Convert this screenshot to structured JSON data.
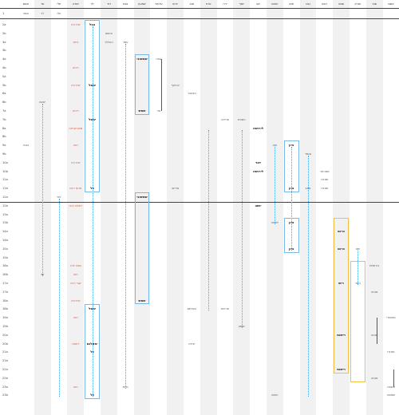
{
  "columns": [
    {
      "id": "c1",
      "title": "אשם",
      "sub": "ממני"
    },
    {
      "id": "c2",
      "title": "סר",
      "sub": "לוי"
    },
    {
      "id": "c3",
      "title": "זולי",
      "sub": "זולו"
    },
    {
      "id": "c4",
      "title": "יהודה",
      "sub": ""
    },
    {
      "id": "c5",
      "title": "לוי",
      "sub": ""
    },
    {
      "id": "c6",
      "title": "דוד",
      "sub": ""
    },
    {
      "id": "c7",
      "title": "נפת",
      "sub": ""
    },
    {
      "id": "c8",
      "title": "שמעון",
      "sub": ""
    },
    {
      "id": "c9",
      "title": "עדעזר",
      "sub": ""
    },
    {
      "id": "c10",
      "title": "יורש",
      "sub": ""
    },
    {
      "id": "c11",
      "title": "זאב",
      "sub": ""
    },
    {
      "id": "c12",
      "title": "ארח",
      "sub": ""
    },
    {
      "id": "c13",
      "title": "ירה",
      "sub": ""
    },
    {
      "id": "c14",
      "title": "יוסף",
      "sub": ""
    },
    {
      "id": "c15",
      "title": "יהב",
      "sub": ""
    },
    {
      "id": "c16",
      "title": "חוטם",
      "sub": ""
    },
    {
      "id": "c17",
      "title": "חנא",
      "sub": ""
    },
    {
      "id": "c18",
      "title": "נבט",
      "sub": ""
    },
    {
      "id": "c19",
      "title": "ראש",
      "sub": ""
    },
    {
      "id": "c20",
      "title": "שפט",
      "sub": ""
    },
    {
      "id": "c21",
      "title": "עזרא",
      "sub": ""
    },
    {
      "id": "c22",
      "title": "שגר",
      "sub": ""
    },
    {
      "id": "c23",
      "title": "אשם",
      "sub": ""
    }
  ],
  "rows": [
    "2a",
    "2b",
    "3a",
    "3b",
    "4a",
    "4b",
    "5a",
    "5b",
    "6a",
    "6b",
    "7a",
    "7b",
    "8a",
    "8b",
    "9a",
    "9b",
    "10a",
    "10b",
    "11a",
    "11b",
    "12a",
    "12b",
    "13a",
    "13b",
    "14a",
    "14b",
    "15a",
    "15b",
    "16a",
    "16b",
    "17a",
    "17b",
    "18a",
    "18b",
    "19a",
    "19b",
    "20a",
    "20b",
    "21a",
    "21b",
    "22a",
    "22b",
    "23a",
    "23b"
  ],
  "row_header_top": "1",
  "cells": [
    {
      "row": "2a",
      "col": "c4",
      "text": "אדרכיה",
      "style": "red"
    },
    {
      "row": "2a",
      "col": "c5",
      "text": "בבל",
      "style": "bold"
    },
    {
      "row": "2b",
      "col": "c6",
      "text": "אחותו",
      "style": "norm"
    },
    {
      "row": "3a",
      "col": "c4",
      "text": "ביתר",
      "style": "red"
    },
    {
      "row": "3a",
      "col": "c6",
      "text": "ההללך",
      "style": "norm"
    },
    {
      "row": "3a",
      "col": "c7",
      "text": "עמד",
      "style": "norm"
    },
    {
      "row": "4a",
      "col": "c8",
      "text": "שמשוני",
      "style": "bold"
    },
    {
      "row": "4a",
      "col": "c9",
      "text": "גבוה",
      "style": "norm"
    },
    {
      "row": "4b",
      "col": "c4",
      "text": "ריחה",
      "style": "red"
    },
    {
      "row": "5b",
      "col": "c4",
      "text": "אדרכיה",
      "style": "red"
    },
    {
      "row": "5b",
      "col": "c5",
      "text": "ימסל",
      "style": "bold"
    },
    {
      "row": "5b",
      "col": "c10",
      "text": "ארטוף",
      "style": "norm"
    },
    {
      "row": "6a",
      "col": "c11",
      "text": "הצטבר",
      "style": "norm"
    },
    {
      "row": "6b",
      "col": "c2",
      "text": "יוגיגם",
      "style": "norm"
    },
    {
      "row": "7a",
      "col": "c4",
      "text": "ריחה",
      "style": "red"
    },
    {
      "row": "7a",
      "col": "c8",
      "text": "שמש",
      "style": "bold"
    },
    {
      "row": "7a",
      "col": "c9",
      "text": "מר",
      "style": "norm"
    },
    {
      "row": "7b",
      "col": "c5",
      "text": "ימסל",
      "style": "bold"
    },
    {
      "row": "7b",
      "col": "c13",
      "text": "פריחה",
      "style": "norm"
    },
    {
      "row": "7b",
      "col": "c14",
      "text": "חשגית",
      "style": "norm"
    },
    {
      "row": "8a",
      "col": "c4",
      "text": "מוארקרחה",
      "style": "red"
    },
    {
      "row": "8a",
      "col": "c15",
      "text": "לירושה",
      "style": "bold"
    },
    {
      "row": "9a",
      "col": "c1",
      "text": "גבנה",
      "style": "norm"
    },
    {
      "row": "9a",
      "col": "c4",
      "text": "חוה",
      "style": "red"
    },
    {
      "row": "9a",
      "col": "c16",
      "text": "חוט",
      "style": "norm"
    },
    {
      "row": "9a",
      "col": "c17",
      "text": "ציון",
      "style": "bold"
    },
    {
      "row": "9b",
      "col": "c18",
      "text": "נסמר",
      "style": "norm"
    },
    {
      "row": "10a",
      "col": "c4",
      "text": "אדרכיה",
      "style": "red"
    },
    {
      "row": "10a",
      "col": "c15",
      "text": "ייטר",
      "style": "bold"
    },
    {
      "row": "10b",
      "col": "c15",
      "text": "לירושה",
      "style": "bold"
    },
    {
      "row": "10b",
      "col": "c19",
      "text": "מסהחר",
      "style": "norm"
    },
    {
      "row": "11a",
      "col": "c19",
      "text": "זמנזרו",
      "style": "norm"
    },
    {
      "row": "11b",
      "col": "c4",
      "text": "מרשי רבה",
      "style": "red"
    },
    {
      "row": "11b",
      "col": "c5",
      "text": "כל",
      "style": "bold"
    },
    {
      "row": "11b",
      "col": "c10",
      "text": "מרתב",
      "style": "norm"
    },
    {
      "row": "11b",
      "col": "c17",
      "text": "ציון",
      "style": "bold"
    },
    {
      "row": "11b",
      "col": "c18",
      "text": "ממב",
      "style": "norm"
    },
    {
      "row": "11b",
      "col": "c19",
      "text": "זמנזרו",
      "style": "norm"
    },
    {
      "row": "12a",
      "col": "c3",
      "text": "לפי",
      "style": "norm"
    },
    {
      "row": "12a",
      "col": "c8",
      "text": "שמשוני",
      "style": "bold"
    },
    {
      "row": "12b",
      "col": "c4",
      "text": "רחמה רבה",
      "style": "red"
    },
    {
      "row": "12b",
      "col": "c15",
      "text": "יושב",
      "style": "bold"
    },
    {
      "row": "13b",
      "col": "c16",
      "text": "לחמה",
      "style": "norm"
    },
    {
      "row": "13b",
      "col": "c17",
      "text": "ציון",
      "style": "bold"
    },
    {
      "row": "14a",
      "col": "c20",
      "text": "כרום",
      "style": "bold"
    },
    {
      "row": "15a",
      "col": "c17",
      "text": "ציון",
      "style": "bold"
    },
    {
      "row": "15a",
      "col": "c20",
      "text": "כרום",
      "style": "bold"
    },
    {
      "row": "15a",
      "col": "c21",
      "text": "ימנו",
      "style": "norm"
    },
    {
      "row": "16a",
      "col": "c4",
      "text": "שבט יורה",
      "style": "red"
    },
    {
      "row": "16a",
      "col": "c22",
      "text": "בירשלם",
      "style": "norm"
    },
    {
      "row": "16b",
      "col": "c2",
      "text": "זמי",
      "style": "norm"
    },
    {
      "row": "16b",
      "col": "c4",
      "text": "חוה",
      "style": "red"
    },
    {
      "row": "17a",
      "col": "c4",
      "text": "שבי רחה",
      "style": "red"
    },
    {
      "row": "17a",
      "col": "c20",
      "text": "ריש",
      "style": "bold"
    },
    {
      "row": "17a",
      "col": "c21",
      "text": "כותר",
      "style": "norm"
    },
    {
      "row": "17b",
      "col": "c22",
      "text": "מנחה",
      "style": "norm"
    },
    {
      "row": "18a",
      "col": "c4",
      "text": "אדרכיה",
      "style": "red"
    },
    {
      "row": "18a",
      "col": "c8",
      "text": "שמש",
      "style": "bold"
    },
    {
      "row": "18b",
      "col": "c5",
      "text": "ימסל",
      "style": "bold"
    },
    {
      "row": "18b",
      "col": "c11",
      "text": "השרתם",
      "style": "norm"
    },
    {
      "row": "18b",
      "col": "c13",
      "text": "פרחים",
      "style": "norm"
    },
    {
      "row": "19a",
      "col": "c4",
      "text": "חוה",
      "style": "red"
    },
    {
      "row": "19a",
      "col": "c23",
      "text": "מחשורי",
      "style": "norm"
    },
    {
      "row": "19b",
      "col": "c14",
      "text": "ישמע",
      "style": "norm"
    },
    {
      "row": "20a",
      "col": "c20",
      "text": "רישות",
      "style": "bold"
    },
    {
      "row": "20a",
      "col": "c22",
      "text": "מנחה",
      "style": "norm"
    },
    {
      "row": "20b",
      "col": "c4",
      "text": "רחמה",
      "style": "red"
    },
    {
      "row": "20b",
      "col": "c5",
      "text": "ימסלגם",
      "style": "bold"
    },
    {
      "row": "20b",
      "col": "c11",
      "text": "יצדינו",
      "style": "norm"
    },
    {
      "row": "21a",
      "col": "c5",
      "text": "כל",
      "style": "bold"
    },
    {
      "row": "21a",
      "col": "c23",
      "text": "זמנזרו",
      "style": "norm"
    },
    {
      "row": "22a",
      "col": "c20",
      "text": "רישות",
      "style": "bold"
    },
    {
      "row": "22b",
      "col": "c22",
      "text": "מנחה",
      "style": "norm"
    },
    {
      "row": "23a",
      "col": "c4",
      "text": "חוה",
      "style": "red"
    },
    {
      "row": "23a",
      "col": "c7",
      "text": "נדות",
      "style": "norm"
    },
    {
      "row": "23a",
      "col": "c23",
      "text": "אשמה",
      "style": "norm"
    },
    {
      "row": "23b",
      "col": "c5",
      "text": "כל",
      "style": "bold"
    },
    {
      "row": "23b",
      "col": "c16",
      "text": "חוטם",
      "style": "norm"
    },
    {
      "row": "23b",
      "col": "c23",
      "text": "שמשה",
      "style": "norm"
    }
  ]
}
